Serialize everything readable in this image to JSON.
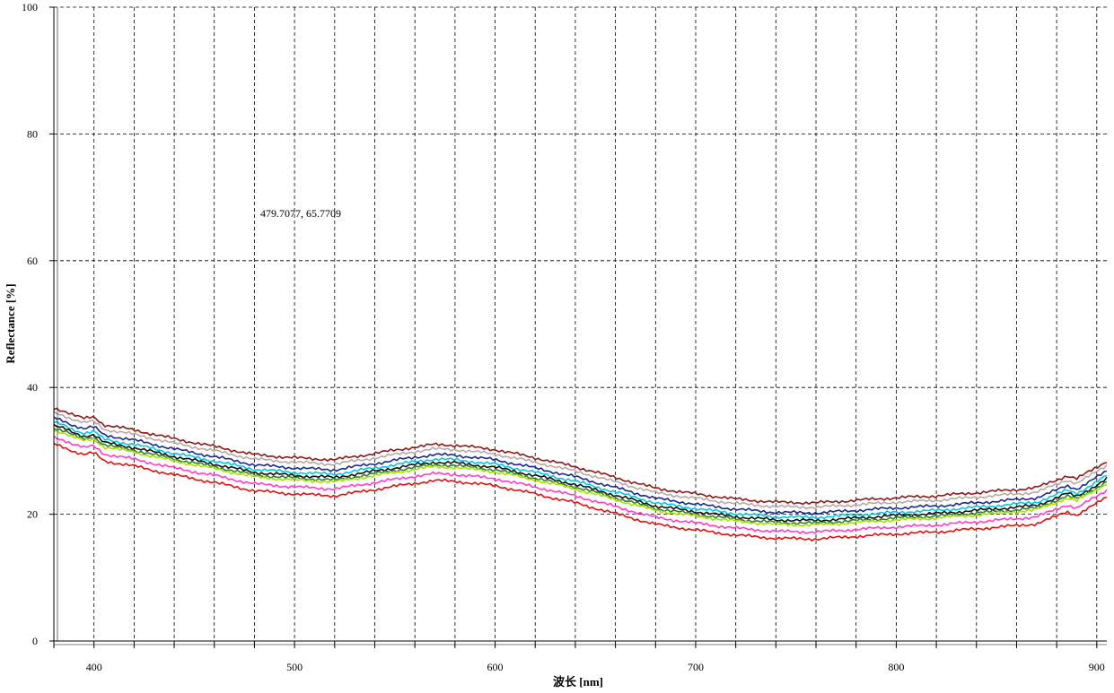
{
  "chart_data": {
    "type": "line",
    "title": "",
    "xlabel": "波长 [nm]",
    "ylabel": "Reflectance [%]",
    "xlim": [
      380,
      905
    ],
    "ylim": [
      0,
      100
    ],
    "x_ticks": [
      400,
      500,
      600,
      700,
      800,
      900
    ],
    "y_ticks": [
      0,
      20,
      40,
      60,
      80,
      100
    ],
    "x_grid_step": 20,
    "y_grid_step": 20,
    "grid": true,
    "legend": "none",
    "annotation": "479.7077, 65.7709",
    "x": [
      380,
      385,
      390,
      395,
      400,
      405,
      420,
      440,
      460,
      480,
      500,
      520,
      540,
      560,
      570,
      580,
      600,
      620,
      640,
      660,
      680,
      700,
      720,
      740,
      760,
      780,
      800,
      820,
      840,
      860,
      870,
      880,
      885,
      890,
      900,
      905
    ],
    "base_profile": [
      36.8,
      36.3,
      35.6,
      35.1,
      35.4,
      34.1,
      33.3,
      31.9,
      30.7,
      29.4,
      28.9,
      28.6,
      29.6,
      30.6,
      31.0,
      30.9,
      30.2,
      28.9,
      27.5,
      25.8,
      24.1,
      23.2,
      22.4,
      21.9,
      21.8,
      22.2,
      22.6,
      22.9,
      23.4,
      23.9,
      24.2,
      25.4,
      26.1,
      25.6,
      27.4,
      28.4
    ],
    "series": [
      {
        "color": "#8b1a1a",
        "offset": 0.0
      },
      {
        "color": "#b8a8a8",
        "offset": -0.7
      },
      {
        "color": "#1a2a8c",
        "offset": -1.6
      },
      {
        "color": "#00c8e0",
        "offset": -2.3
      },
      {
        "color": "#101010",
        "offset": -2.8
      },
      {
        "color": "#2e7d32",
        "offset": -3.2
      },
      {
        "color": "#a8e000",
        "offset": -3.5
      },
      {
        "color": "#ff3cc8",
        "offset": -4.6
      },
      {
        "color": "#e01010",
        "offset": -5.7
      }
    ],
    "sample_step": 1.5
  }
}
